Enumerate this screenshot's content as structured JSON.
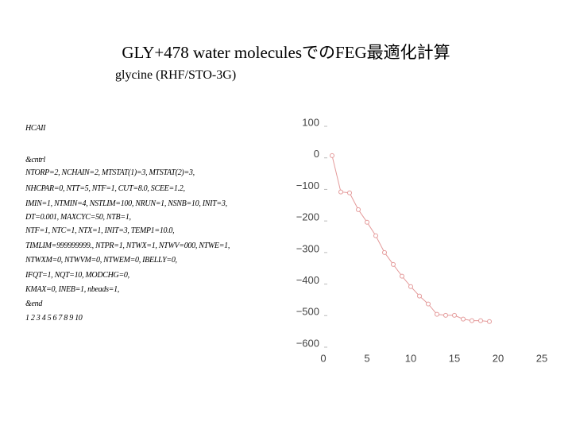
{
  "slide": {
    "title": "GLY+478 water moleculesでのFEG最適化計算",
    "subtitle": "glycine (RHF/STO-3G)",
    "code_lines": [
      "HCAII",
      "&cntrl",
      "NTORP=2, NCHAIN=2, MTSTAT(1)=3, MTSTAT(2)=3,",
      "NHCPAR=0, NTT=5, NTF=1, CUT=8.0, SCEE=1.2,",
      "IMIN=1, NTMIN=4, NSTLIM=100, NRUN=1, NSNB=10, INIT=3,",
      "DT=0.001, MAXCYC=50, NTB=1,",
      "NTF=1, NTC=1, NTX=1, INIT=3, TEMP1=10.0,",
      "TIMLIM=999999999., NTPR=1, NTWX=1, NTWV=000, NTWE=1,",
      "NTWXM=0, NTWVM=0, NTWEM=0, IBELLY=0,",
      "IFQT=1, NQT=10, MODCHG=0,",
      "KMAX=0, INEB=1, nbeads=1,",
      "&end",
      "1 2 3 4 5 6 7 8 9 10"
    ]
  },
  "chart_data": {
    "type": "line",
    "x": [
      1,
      2,
      3,
      4,
      5,
      6,
      7,
      8,
      9,
      10,
      11,
      12,
      13,
      14,
      15,
      16,
      17,
      18,
      19
    ],
    "series": [
      {
        "color": "#e49a9a",
        "values": [
          -3,
          -118,
          -121,
          -174,
          -214,
          -257,
          -310,
          -348,
          -385,
          -418,
          -448,
          -473,
          -506,
          -509,
          -509,
          -521,
          -526,
          -526,
          -529
        ]
      }
    ],
    "xlim": [
      0,
      25
    ],
    "xticks": [
      0,
      5,
      10,
      15,
      20,
      25
    ],
    "ylim": [
      -600,
      100
    ],
    "yticks": [
      100,
      0,
      {
        "value": -100,
        "label": "−100"
      },
      {
        "value": -200,
        "label": "−200"
      },
      {
        "value": -300,
        "label": "−300"
      },
      {
        "value": -400,
        "label": "−400"
      },
      {
        "value": -500,
        "label": "−500"
      },
      {
        "value": -600,
        "label": "−600"
      }
    ]
  }
}
